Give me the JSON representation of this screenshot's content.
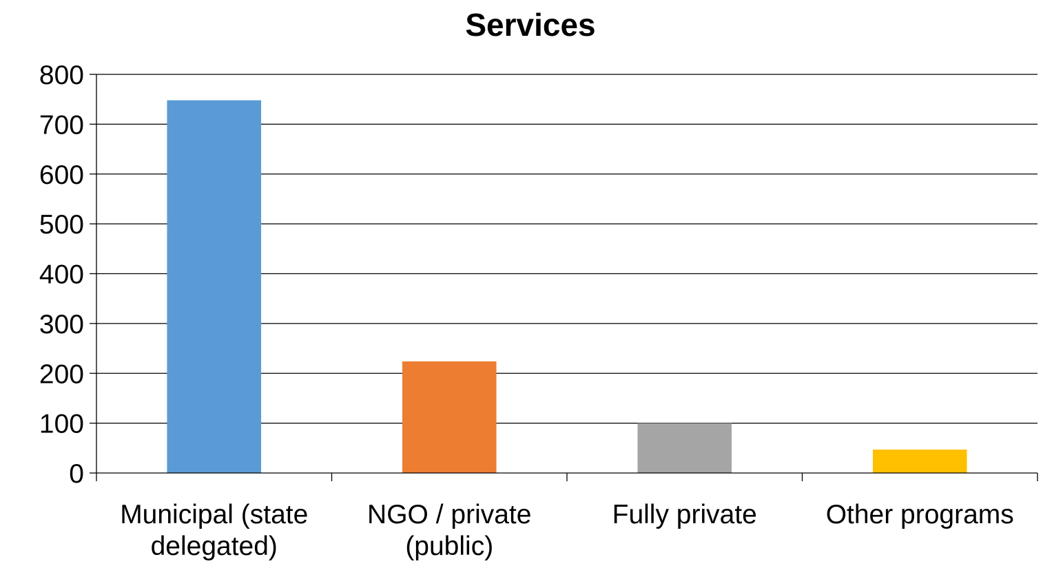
{
  "chart_data": {
    "type": "bar",
    "title": "Services",
    "categories": [
      [
        "Municipal (state",
        "delegated)"
      ],
      [
        "NGO / private",
        "(public)"
      ],
      [
        "Fully private"
      ],
      [
        "Other programs"
      ]
    ],
    "values": [
      748,
      224,
      100,
      47
    ],
    "colors": [
      "#5B9BD5",
      "#ED7D31",
      "#A5A5A5",
      "#FFC000"
    ],
    "ylim": [
      0,
      800
    ],
    "yticks": [
      0,
      100,
      200,
      300,
      400,
      500,
      600,
      700,
      800
    ],
    "xlabel": "",
    "ylabel": "",
    "grid": true,
    "legend": "none"
  }
}
